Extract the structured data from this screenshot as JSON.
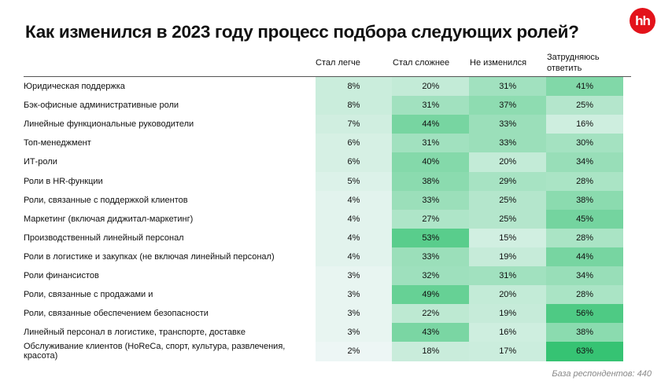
{
  "title": "Как изменился в 2023 году процесс подбора следующих ролей?",
  "logo": "hh",
  "footer": "База респондентов: 440",
  "colors": {
    "min": "#f6f9fb",
    "max": "#36c373",
    "logo": "#e3131b"
  },
  "chart_data": {
    "type": "heatmap",
    "title": "Как изменился в 2023 году процесс подбора следующих ролей?",
    "columns": [
      "Стал легче",
      "Стал сложнее",
      "Не изменился",
      "Затрудняюсь ответить"
    ],
    "rows": [
      {
        "label": "Юридическая поддержка",
        "values": [
          8,
          20,
          31,
          41
        ],
        "text": [
          "8%",
          "20%",
          "31%",
          "41%"
        ]
      },
      {
        "label": "Бэк-офисные административные роли",
        "values": [
          8,
          31,
          37,
          25
        ],
        "text": [
          "8%",
          "31%",
          "37%",
          "25%"
        ]
      },
      {
        "label": "Линейные функциональные руководители",
        "values": [
          7,
          44,
          33,
          16
        ],
        "text": [
          "7%",
          "44%",
          "33%",
          "16%"
        ]
      },
      {
        "label": "Топ-менеджмент",
        "values": [
          6,
          31,
          33,
          30
        ],
        "text": [
          "6%",
          "31%",
          "33%",
          "30%"
        ]
      },
      {
        "label": "ИТ-роли",
        "values": [
          6,
          40,
          20,
          34
        ],
        "text": [
          "6%",
          "40%",
          "20%",
          "34%"
        ]
      },
      {
        "label": "Роли в HR-функции",
        "values": [
          5,
          38,
          29,
          28
        ],
        "text": [
          "5%",
          "38%",
          "29%",
          "28%"
        ]
      },
      {
        "label": "Роли, связанные с поддержкой клиентов",
        "values": [
          4,
          33,
          25,
          38
        ],
        "text": [
          "4%",
          "33%",
          "25%",
          "38%"
        ]
      },
      {
        "label": "Маркетинг (включая диджитал-маркетинг)",
        "values": [
          4,
          27,
          25,
          45
        ],
        "text": [
          "4%",
          "27%",
          "25%",
          "45%"
        ]
      },
      {
        "label": "Производственный линейный персонал",
        "values": [
          4,
          53,
          15,
          28
        ],
        "text": [
          "4%",
          "53%",
          "15%",
          "28%"
        ]
      },
      {
        "label": "Роли в логистике и закупках (не включая линейный персонал)",
        "values": [
          4,
          33,
          19,
          44
        ],
        "text": [
          "4%",
          "33%",
          "19%",
          "44%"
        ]
      },
      {
        "label": "Роли финансистов",
        "values": [
          3,
          32,
          31,
          34
        ],
        "text": [
          "3%",
          "32%",
          "31%",
          "34%"
        ]
      },
      {
        "label": "Роли, связанные с продажами и",
        "values": [
          3,
          49,
          20,
          28
        ],
        "text": [
          "3%",
          "49%",
          "20%",
          "28%"
        ]
      },
      {
        "label": "Роли, связанные обеспечением безопасности",
        "values": [
          3,
          22,
          19,
          56
        ],
        "text": [
          "3%",
          "22%",
          "19%",
          "56%"
        ]
      },
      {
        "label": "Линейный персонал в логистике, транспорте, доставке",
        "values": [
          3,
          43,
          16,
          38
        ],
        "text": [
          "3%",
          "43%",
          "16%",
          "38%"
        ]
      },
      {
        "label": "Обслуживание клиентов (HoReCa, спорт, культура, развлечения, красота)",
        "values": [
          2,
          18,
          17,
          63
        ],
        "text": [
          "2%",
          "18%",
          "17%",
          "63%"
        ]
      }
    ],
    "value_range": [
      0,
      63
    ],
    "unit": "%"
  }
}
